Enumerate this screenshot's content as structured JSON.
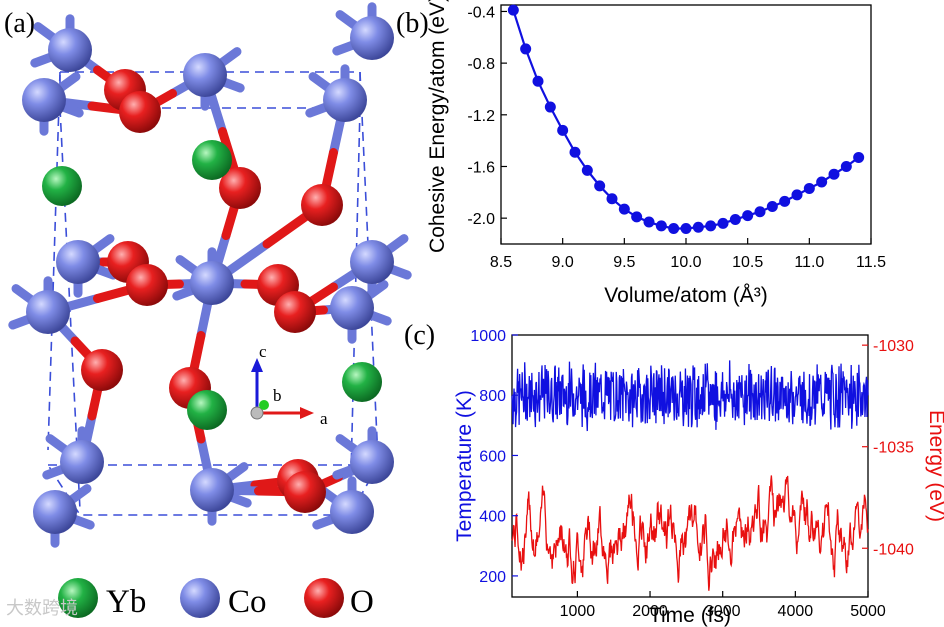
{
  "panels": {
    "a": {
      "label": "(a)",
      "axes": {
        "c": "c",
        "b": "b",
        "a": "a"
      },
      "legend": [
        {
          "name": "Yb",
          "color": "#1faa3f"
        },
        {
          "name": "Co",
          "color": "#6b78d8"
        },
        {
          "name": "O",
          "color": "#e01818"
        }
      ]
    },
    "b": {
      "label": "(b)"
    },
    "c": {
      "label": "(c)"
    }
  },
  "watermark": "大数跨境",
  "colors": {
    "blue": "#1010e0",
    "red": "#e81010",
    "co": "#6b78d8",
    "o": "#e01818",
    "yb": "#1faa3f"
  },
  "chart_data": [
    {
      "panel": "b",
      "type": "line",
      "xlabel": "Volume/atom (Å³)",
      "ylabel": "Cohesive Energy/atom (eV)",
      "xlim": [
        8.5,
        11.5
      ],
      "ylim": [
        -2.2,
        -0.35
      ],
      "xticks": [
        "8.5",
        "9.0",
        "9.5",
        "10.0",
        "10.5",
        "11.0",
        "11.5"
      ],
      "yticks": [
        "-0.4",
        "-0.8",
        "-1.2",
        "-1.6",
        "-2.0"
      ],
      "grid": false,
      "series": [
        {
          "color": "#1010e0",
          "x": [
            8.6,
            8.7,
            8.8,
            8.9,
            9.0,
            9.1,
            9.2,
            9.3,
            9.4,
            9.5,
            9.6,
            9.7,
            9.8,
            9.9,
            10.0,
            10.1,
            10.2,
            10.3,
            10.4,
            10.5,
            10.6,
            10.7,
            10.8,
            10.9,
            11.0,
            11.1,
            11.2,
            11.3,
            11.4
          ],
          "y": [
            -0.39,
            -0.69,
            -0.94,
            -1.14,
            -1.32,
            -1.49,
            -1.63,
            -1.75,
            -1.85,
            -1.93,
            -1.99,
            -2.03,
            -2.06,
            -2.08,
            -2.08,
            -2.07,
            -2.06,
            -2.04,
            -2.01,
            -1.98,
            -1.95,
            -1.91,
            -1.87,
            -1.82,
            -1.77,
            -1.72,
            -1.66,
            -1.6,
            -1.53
          ]
        }
      ]
    },
    {
      "panel": "c",
      "type": "line",
      "xlabel": "Time (fs)",
      "ylabel": "Temperature (K)",
      "ylabel_right": "Energy (eV)",
      "xlim": [
        100,
        5000
      ],
      "ylim": [
        130,
        1000
      ],
      "ylim_right": [
        -1042.4,
        -1029.5
      ],
      "xticks": [
        "1000",
        "2000",
        "3000",
        "4000",
        "5000"
      ],
      "yticks": [
        "200",
        "400",
        "600",
        "800",
        "1000"
      ],
      "yticks_right": [
        "-1030",
        "-1035",
        "-1040"
      ],
      "grid": false,
      "series": [
        {
          "axis": "left",
          "color": "#1010e0",
          "mean": 800,
          "amplitude": 110,
          "min": 625,
          "max": 970
        },
        {
          "axis": "right",
          "color": "#e81010",
          "mean": -1039.0,
          "amplitude": 3.0,
          "min": -1042.2,
          "max": -1035.4
        }
      ]
    }
  ]
}
